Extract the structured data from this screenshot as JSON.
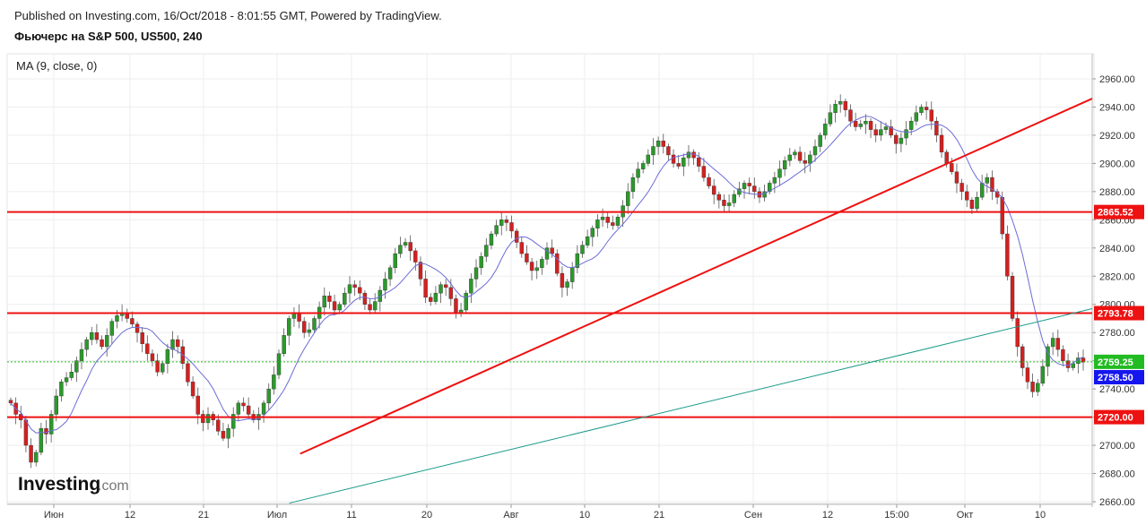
{
  "header": {
    "published": "Published on Investing.com, 16/Oct/2018 - 8:01:55 GMT, Powered by TradingView.",
    "symbol_title": "Фьючерс на S&P 500, US500, 240"
  },
  "indicator_label": "MA (9, close, 0)",
  "logo": {
    "main": "Investing",
    "suffix": ".com"
  },
  "colors": {
    "up": "#2a9a2a",
    "down": "#d42020",
    "ma": "#6c6cd8",
    "level": "#ee1111",
    "trend": "#ee1111",
    "channel": "#1a9a8a",
    "last": "#22bb22",
    "current": "#1515ee"
  },
  "chart_data": {
    "type": "candlestick",
    "title": "Фьючерс на S&P 500, US500, 240",
    "ylim": [
      2660,
      2970
    ],
    "y_ticks": [
      "2960.00",
      "2940.00",
      "2920.00",
      "2900.00",
      "2880.00",
      "2860.00",
      "2840.00",
      "2820.00",
      "2800.00",
      "2780.00",
      "2760.00",
      "2740.00",
      "2720.00",
      "2700.00",
      "2680.00",
      "2660.00"
    ],
    "x_ticks": [
      "Июн",
      "12",
      "21",
      "Июл",
      "11",
      "20",
      "Авг",
      "10",
      "21",
      "Сен",
      "12",
      "15:00",
      "Окт",
      "10"
    ],
    "close_path": [
      2730,
      2722,
      2718,
      2700,
      2688,
      2695,
      2712,
      2708,
      2722,
      2735,
      2745,
      2748,
      2752,
      2760,
      2768,
      2775,
      2780,
      2775,
      2770,
      2778,
      2788,
      2792,
      2794,
      2790,
      2786,
      2780,
      2772,
      2765,
      2760,
      2752,
      2758,
      2768,
      2775,
      2770,
      2758,
      2745,
      2735,
      2722,
      2716,
      2722,
      2718,
      2710,
      2705,
      2712,
      2722,
      2730,
      2728,
      2722,
      2718,
      2722,
      2730,
      2740,
      2750,
      2765,
      2778,
      2790,
      2794,
      2788,
      2780,
      2782,
      2790,
      2798,
      2806,
      2802,
      2796,
      2800,
      2808,
      2814,
      2812,
      2808,
      2800,
      2796,
      2802,
      2810,
      2818,
      2826,
      2836,
      2842,
      2844,
      2838,
      2830,
      2818,
      2805,
      2802,
      2808,
      2814,
      2812,
      2804,
      2794,
      2796,
      2808,
      2818,
      2826,
      2834,
      2842,
      2850,
      2856,
      2860,
      2858,
      2852,
      2844,
      2836,
      2830,
      2824,
      2826,
      2832,
      2840,
      2836,
      2822,
      2812,
      2816,
      2826,
      2836,
      2842,
      2848,
      2854,
      2860,
      2862,
      2858,
      2856,
      2862,
      2870,
      2880,
      2890,
      2896,
      2900,
      2906,
      2912,
      2916,
      2912,
      2906,
      2900,
      2898,
      2904,
      2908,
      2904,
      2898,
      2890,
      2884,
      2878,
      2874,
      2870,
      2872,
      2878,
      2882,
      2886,
      2884,
      2880,
      2876,
      2880,
      2886,
      2890,
      2896,
      2902,
      2906,
      2908,
      2902,
      2900,
      2906,
      2912,
      2920,
      2928,
      2936,
      2942,
      2944,
      2938,
      2930,
      2926,
      2928,
      2930,
      2924,
      2920,
      2924,
      2926,
      2920,
      2914,
      2918,
      2924,
      2930,
      2936,
      2940,
      2938,
      2930,
      2920,
      2908,
      2900,
      2894,
      2886,
      2880,
      2874,
      2868,
      2876,
      2886,
      2890,
      2880,
      2876,
      2850,
      2820,
      2790,
      2770,
      2755,
      2745,
      2738,
      2744,
      2756,
      2770,
      2776,
      2768,
      2760,
      2755,
      2758,
      2762,
      2759
    ],
    "ma_label": "MA (9, close, 0)",
    "levels": [
      {
        "value": 2865.52,
        "label": "2865.52"
      },
      {
        "value": 2793.78,
        "label": "2793.78"
      },
      {
        "value": 2720.0,
        "label": "2720.00"
      }
    ],
    "last_price": {
      "value": 2759.25,
      "label": "2759.25"
    },
    "current_price": {
      "value": 2758.5,
      "label": "2758.50"
    },
    "trendlines": [
      {
        "name": "uptrend",
        "from": [
          0.27,
          2694
        ],
        "to": [
          1.0,
          2946
        ]
      },
      {
        "name": "channel",
        "from": [
          0.26,
          2659
        ],
        "to": [
          1.0,
          2797
        ]
      }
    ]
  }
}
